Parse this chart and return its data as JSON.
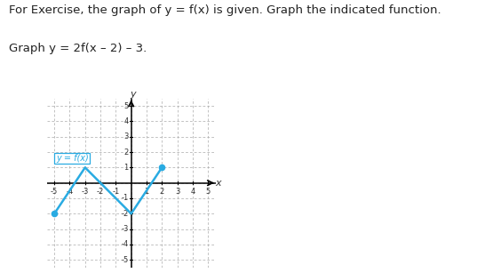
{
  "title_line1": "For Exercise, the graph of y = f(x) is given. Graph the indicated function.",
  "title_line2": "Graph y = 2f(x – 2) – 3.",
  "fx_points": [
    [
      -5,
      -2
    ],
    [
      -3,
      1
    ],
    [
      0,
      -2
    ],
    [
      2,
      1
    ]
  ],
  "line_color": "#29ABE2",
  "dot_color": "#29ABE2",
  "label_text": "y = f(x)",
  "xlim": [
    -5.5,
    5.5
  ],
  "ylim": [
    -5.5,
    5.5
  ],
  "xticks": [
    -5,
    -4,
    -3,
    -2,
    -1,
    1,
    2,
    3,
    4,
    5
  ],
  "yticks": [
    -5,
    -4,
    -3,
    -2,
    -1,
    1,
    2,
    3,
    4,
    5
  ],
  "grid_major_ticks": [
    -5,
    -4,
    -3,
    -2,
    -1,
    0,
    1,
    2,
    3,
    4,
    5
  ],
  "grid_color": "#aaaaaa",
  "axis_color": "#000000",
  "font_size_title1": 9.5,
  "font_size_title2": 9.5,
  "background_color": "#ffffff"
}
